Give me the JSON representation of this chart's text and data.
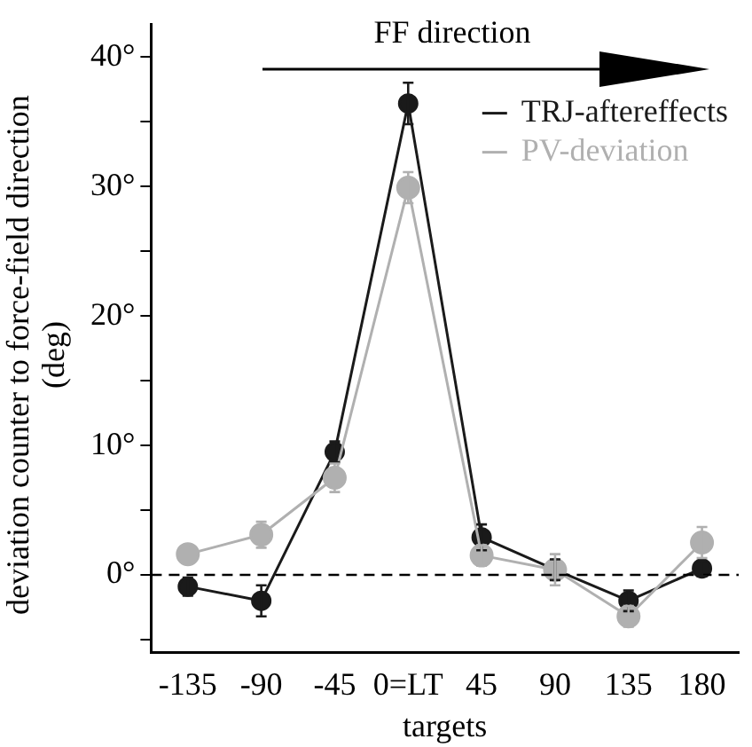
{
  "chart_data": {
    "type": "line",
    "xlabel": "targets",
    "ylabel": "deviation counter to force-field direction (deg)",
    "annotations": [
      "FF direction"
    ],
    "categories": [
      "-135",
      "-90",
      "-45",
      "0=LT",
      "45",
      "90",
      "135",
      "180"
    ],
    "series": [
      {
        "name": "TRJ-aftereffects",
        "color": "#1a1a1a",
        "values": [
          -0.9,
          -2.0,
          9.5,
          36.4,
          2.9,
          0.4,
          -2.0,
          0.5
        ],
        "errors": [
          0.7,
          1.2,
          0.8,
          1.6,
          1.0,
          0.8,
          0.8,
          0.6
        ]
      },
      {
        "name": "PV-deviation",
        "color": "#b0b0b0",
        "values": [
          1.6,
          3.1,
          7.5,
          29.9,
          1.5,
          0.4,
          -3.2,
          2.5
        ],
        "errors": [
          0.7,
          1.0,
          1.1,
          1.2,
          0.8,
          1.2,
          0.8,
          1.2
        ]
      }
    ],
    "ylim": [
      -6,
      42.5
    ],
    "yticks": [
      {
        "value": -5,
        "label": null
      },
      {
        "value": 0,
        "label": "0°"
      },
      {
        "value": 5,
        "label": null
      },
      {
        "value": 10,
        "label": "10°"
      },
      {
        "value": 15,
        "label": null
      },
      {
        "value": 20,
        "label": "20°"
      },
      {
        "value": 25,
        "label": null
      },
      {
        "value": 30,
        "label": "30°"
      },
      {
        "value": 35,
        "label": null
      },
      {
        "value": 40,
        "label": "40°"
      }
    ],
    "ref_lines": [
      {
        "axis": "y",
        "value": 0,
        "line_style": "dashed",
        "color": "#000000"
      }
    ],
    "marker": "circle",
    "line_style": "solid",
    "legend": "top right",
    "grid": false
  }
}
